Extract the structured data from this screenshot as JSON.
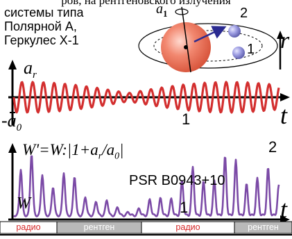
{
  "header_partial": "ров, на рентгеновского излучения",
  "systems_label": [
    "системы типа",
    "Полярной А,",
    "Геркулес Х-1"
  ],
  "orbit": {
    "label_1": "1",
    "label_2": "2",
    "accel_label": "a",
    "accel_subscript": "1"
  },
  "upper_panel": {
    "y_label": "a",
    "y_subscript": "r",
    "neg_label": "-a",
    "neg_subscript": "0",
    "r_label": "r",
    "x_label": "t",
    "marker": "1",
    "wave_color": "#d32f2f"
  },
  "lower_panel": {
    "formula": "W'=W:|1+a",
    "formula_sub": "r",
    "formula_mid": "/a",
    "formula_sub2": "0",
    "formula_end": "|",
    "marker_2": "2",
    "marker_1": "1",
    "pulsar_name": "PSR B0943+10",
    "w_label": "W",
    "x_label": "t",
    "pulse_color": "#7b4aa6"
  },
  "bands": [
    "радио",
    "рентген",
    "радио",
    "рентген"
  ],
  "band_colors": {
    "radio_bg": "#ffffff",
    "radio_text": "#d62828",
    "xray_bg": "#b9b9b9",
    "xray_text": "#ffffff"
  }
}
